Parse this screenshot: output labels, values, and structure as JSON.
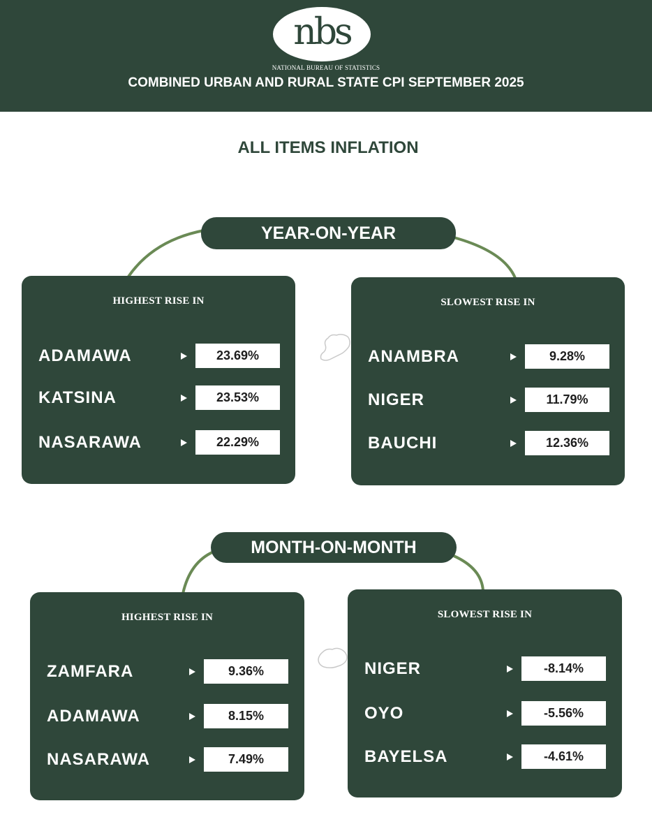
{
  "header": {
    "logo_text": "nbs",
    "org_name": "NATIONAL BUREAU OF STATISTICS",
    "report_title": "COMBINED URBAN AND RURAL STATE CPI SEPTEMBER 2025",
    "background_color": "#2f473a"
  },
  "section_title": "ALL ITEMS INFLATION",
  "year_on_year": {
    "label": "YEAR-ON-YEAR",
    "highest": {
      "heading": "HIGHEST RISE IN",
      "rows": [
        {
          "state": "ADAMAWA",
          "value": "23.69%"
        },
        {
          "state": "KATSINA",
          "value": "23.53%"
        },
        {
          "state": "NASARAWA",
          "value": "22.29%"
        }
      ]
    },
    "slowest": {
      "heading": "SLOWEST RISE IN",
      "rows": [
        {
          "state": "ANAMBRA",
          "value": "9.28%"
        },
        {
          "state": "NIGER",
          "value": "11.79%"
        },
        {
          "state": "BAUCHI",
          "value": "12.36%"
        }
      ]
    }
  },
  "month_on_month": {
    "label": "MONTH-ON-MONTH",
    "highest": {
      "heading": "HIGHEST RISE IN",
      "rows": [
        {
          "state": "ZAMFARA",
          "value": "9.36%"
        },
        {
          "state": "ADAMAWA",
          "value": "8.15%"
        },
        {
          "state": "NASARAWA",
          "value": "7.49%"
        }
      ]
    },
    "slowest": {
      "heading": "SLOWEST RISE IN",
      "rows": [
        {
          "state": "NIGER",
          "value": "-8.14%"
        },
        {
          "state": "OYO",
          "value": "-5.56%"
        },
        {
          "state": "BAYELSA",
          "value": "-4.61%"
        }
      ]
    }
  },
  "colors": {
    "primary_green": "#2f473a",
    "connector_green": "#6a8a55",
    "value_box": "#ffffff"
  }
}
